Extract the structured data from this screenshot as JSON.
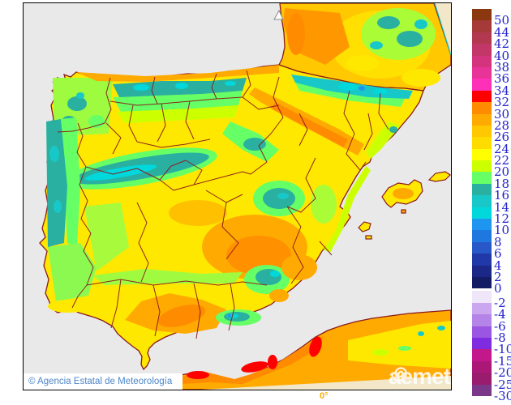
{
  "map": {
    "attribution": "© Agencia Estatal de Meteorología",
    "watermark_text": "aemet",
    "meridian_label": "0°",
    "sea_color": "#E9E9E9",
    "coastline_color": "#8B1A1A",
    "out_of_domain_color": "#F2E8C9",
    "frame_color": "#000000",
    "attribution_color": "#4E86C8",
    "meridian_label_color": "#FFAA00"
  },
  "legend": {
    "label_color": "#2323CE",
    "entries": [
      {
        "label": "50",
        "color": "#8B3810"
      },
      {
        "label": "44",
        "color": "#A53A38"
      },
      {
        "label": "42",
        "color": "#B23850"
      },
      {
        "label": "40",
        "color": "#C23767"
      },
      {
        "label": "38",
        "color": "#D3347D"
      },
      {
        "label": "36",
        "color": "#E83398"
      },
      {
        "label": "34",
        "color": "#FF30B8"
      },
      {
        "label": "32",
        "color": "#FF0000"
      },
      {
        "label": "30",
        "color": "#FF8C00"
      },
      {
        "label": "28",
        "color": "#FFAA00"
      },
      {
        "label": "26",
        "color": "#FFC800"
      },
      {
        "label": "24",
        "color": "#FFDC00"
      },
      {
        "label": "22",
        "color": "#FFFF00"
      },
      {
        "label": "20",
        "color": "#CCFF00"
      },
      {
        "label": "18",
        "color": "#66FF66"
      },
      {
        "label": "16",
        "color": "#2AB0A0"
      },
      {
        "label": "14",
        "color": "#18C8C8"
      },
      {
        "label": "12",
        "color": "#00D8DC"
      },
      {
        "label": "10",
        "color": "#1E96F0"
      },
      {
        "label": "8",
        "color": "#1E78E0"
      },
      {
        "label": "6",
        "color": "#2858C8"
      },
      {
        "label": "4",
        "color": "#2038A8"
      },
      {
        "label": "2",
        "color": "#1C2888"
      },
      {
        "label": "0",
        "color": "#141C64"
      },
      {
        "label": "-2",
        "color": "#EFE6F9",
        "gap_before": true
      },
      {
        "label": "-4",
        "color": "#CBA7EF"
      },
      {
        "label": "-6",
        "color": "#B484E8"
      },
      {
        "label": "-8",
        "color": "#9A55E2"
      },
      {
        "label": "-10",
        "color": "#7F2BE0"
      },
      {
        "label": "-15",
        "color": "#C2188C"
      },
      {
        "label": "-20",
        "color": "#AC1878"
      },
      {
        "label": "-25",
        "color": "#9A1C6E"
      },
      {
        "label": "-30",
        "color": "#7C3888"
      }
    ]
  }
}
